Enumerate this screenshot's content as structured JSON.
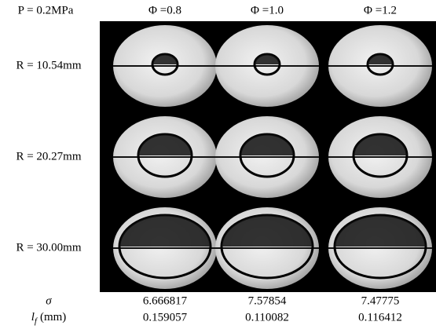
{
  "header": {
    "pressure": "P = 0.2MPa",
    "columns": [
      "Φ =0.8",
      "Φ =1.0",
      "Φ =1.2"
    ]
  },
  "rows": [
    "R = 10.54mm",
    "R = 20.27mm",
    "R = 30.00mm"
  ],
  "table": {
    "sigma_label": "σ",
    "lf_label": {
      "symbol": "l",
      "subscript": "f",
      "unit": "(mm)"
    },
    "sigma": [
      "6.666817",
      "7.57854",
      "7.47775"
    ],
    "lf": [
      "0.159057",
      "0.110082",
      "0.116412"
    ]
  }
}
